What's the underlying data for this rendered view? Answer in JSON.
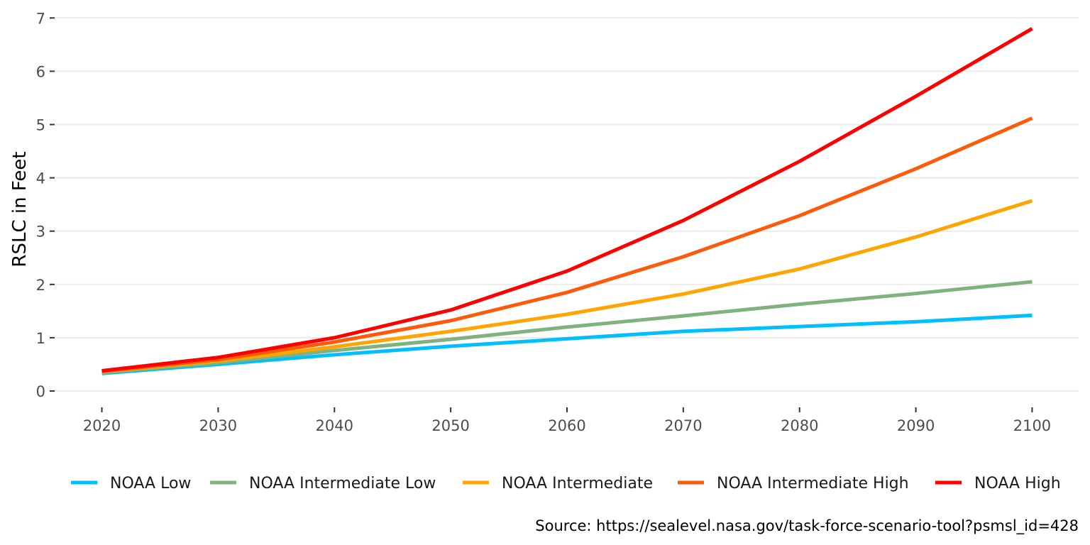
{
  "chart_data": {
    "type": "line",
    "title": "",
    "xlabel": "",
    "ylabel": "RSLC in Feet",
    "x": [
      2020,
      2030,
      2040,
      2050,
      2060,
      2070,
      2080,
      2090,
      2100
    ],
    "x_ticks": [
      "2020",
      "2030",
      "2040",
      "2050",
      "2060",
      "2070",
      "2080",
      "2090",
      "2100"
    ],
    "y_ticks": [
      "0",
      "1",
      "2",
      "3",
      "4",
      "5",
      "6",
      "7"
    ],
    "ylim": [
      0,
      7
    ],
    "grid": "horizontal",
    "legend_position": "bottom",
    "caption": "Source: https://sealevel.nasa.gov/task-force-scenario-tool?psmsl_id=428",
    "series": [
      {
        "name": "NOAA Low",
        "color": "#00bfff",
        "values": [
          0.33,
          0.5,
          0.68,
          0.84,
          0.98,
          1.12,
          1.21,
          1.3,
          1.42
        ]
      },
      {
        "name": "NOAA Intermediate Low",
        "color": "#7fb27f",
        "values": [
          0.35,
          0.53,
          0.76,
          0.97,
          1.2,
          1.41,
          1.63,
          1.83,
          2.05
        ]
      },
      {
        "name": "NOAA Intermediate",
        "color": "#ffa500",
        "values": [
          0.36,
          0.56,
          0.83,
          1.12,
          1.44,
          1.82,
          2.29,
          2.89,
          3.57
        ]
      },
      {
        "name": "NOAA Intermediate High",
        "color": "#ff5a0a",
        "values": [
          0.37,
          0.59,
          0.92,
          1.32,
          1.85,
          2.52,
          3.29,
          4.17,
          5.12
        ]
      },
      {
        "name": "NOAA High",
        "color": "#ff0000",
        "values": [
          0.38,
          0.63,
          1.0,
          1.52,
          2.25,
          3.2,
          4.31,
          5.53,
          6.8
        ]
      }
    ]
  }
}
